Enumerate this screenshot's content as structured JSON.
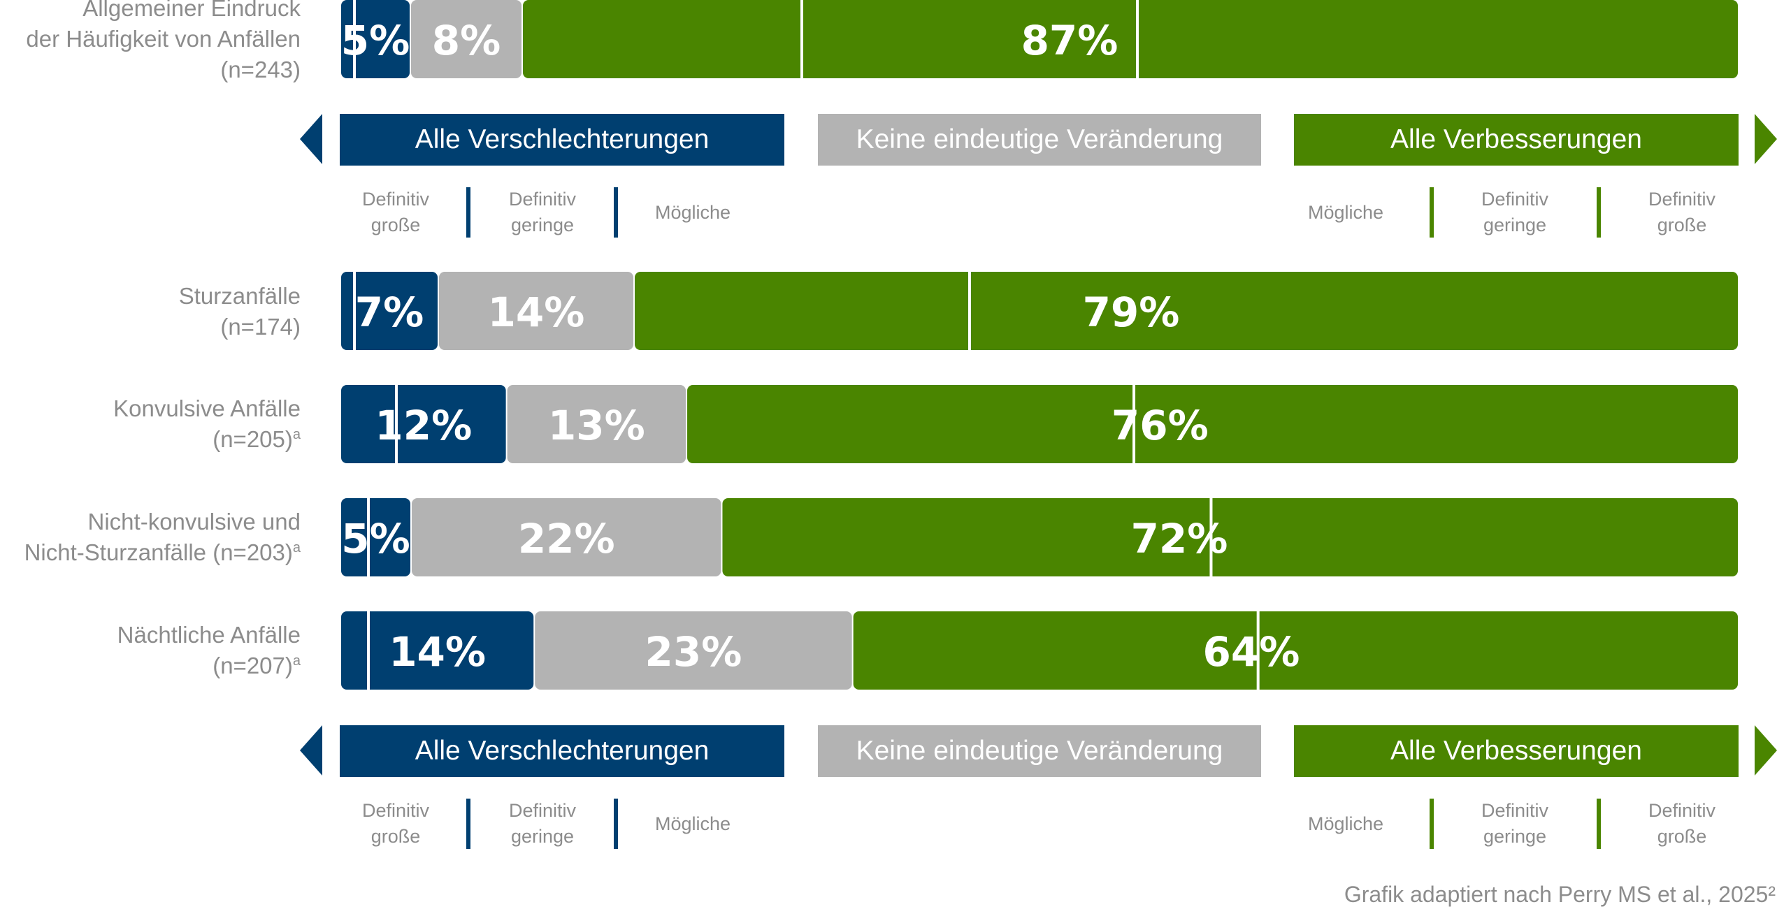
{
  "chart_data": {
    "type": "bar",
    "stacked": true,
    "orientation": "horizontal",
    "categories": [
      "Allgemeiner Eindruck der Häufigkeit von Anfällen (n=243)",
      "Sturzanfälle (n=174)",
      "Konvulsive Anfälle (n=205)ᵃ",
      "Nicht-konvulsive und Nicht-Sturzanfälle (n=203)ᵃ",
      "Nächtliche Anfälle (n=207)ᵃ"
    ],
    "series": [
      {
        "name": "Alle Verschlechterungen",
        "values": [
          5,
          7,
          12,
          5,
          14
        ],
        "color": "#003f70"
      },
      {
        "name": "Keine eindeutige Veränderung",
        "values": [
          8,
          14,
          13,
          22,
          23
        ],
        "color": "#b3b3b3"
      },
      {
        "name": "Alle Verbesserungen",
        "values": [
          87,
          79,
          76,
          72,
          64
        ],
        "color": "#4a8500"
      }
    ],
    "value_labels": [
      [
        "5%",
        "8%",
        "87%"
      ],
      [
        "7%",
        "14%",
        "79%"
      ],
      [
        "12%",
        "13%",
        "76%"
      ],
      [
        "5%",
        "22%",
        "72%"
      ],
      [
        "14%",
        "23%",
        "64%"
      ]
    ],
    "subdivisions": {
      "verschlechterungen_definitiv_grosse": [
        1,
        1,
        0,
        0,
        2
      ],
      "verschlechterungen_definitiv_geringe_plus_grosse": [
        1,
        1,
        4,
        2,
        2
      ],
      "verbesserungen_moegliche": [
        20,
        24,
        32,
        35,
        29
      ],
      "verbesserungen_moegliche_plus_definitiv_geringe": [
        44,
        24,
        32,
        35,
        29
      ]
    },
    "xlim": [
      0,
      100
    ]
  },
  "labels": {
    "rows": [
      {
        "line1": "Allgemeiner Eindruck",
        "line2": "der Häufigkeit von Anfällen",
        "line3": "(n=243)",
        "sup": ""
      },
      {
        "line1": "Sturzanfälle",
        "line2": "(n=174)",
        "sup": ""
      },
      {
        "line1": "Konvulsive Anfälle",
        "line2": "(n=205)",
        "sup": "a"
      },
      {
        "line1": "Nicht-konvulsive und",
        "line2": "Nicht-Sturzanfälle (n=203)",
        "sup": "a"
      },
      {
        "line1": "Nächtliche Anfälle",
        "line2": "(n=207)",
        "sup": "a"
      }
    ]
  },
  "legend": {
    "worse": "Alle Verschlechterungen",
    "neutral": "Keine eindeutige Veränderung",
    "better": "Alle Verbesserungen",
    "worse_sub": {
      "a1": "Definitiv",
      "a2": "große",
      "b1": "Definitiv",
      "b2": "geringe",
      "c": "Mögliche"
    },
    "better_sub": {
      "c": "Mögliche",
      "b1": "Definitiv",
      "b2": "geringe",
      "a1": "Definitiv",
      "a2": "große"
    }
  },
  "source": "Grafik adaptiert nach Perry MS et al., 2025²"
}
